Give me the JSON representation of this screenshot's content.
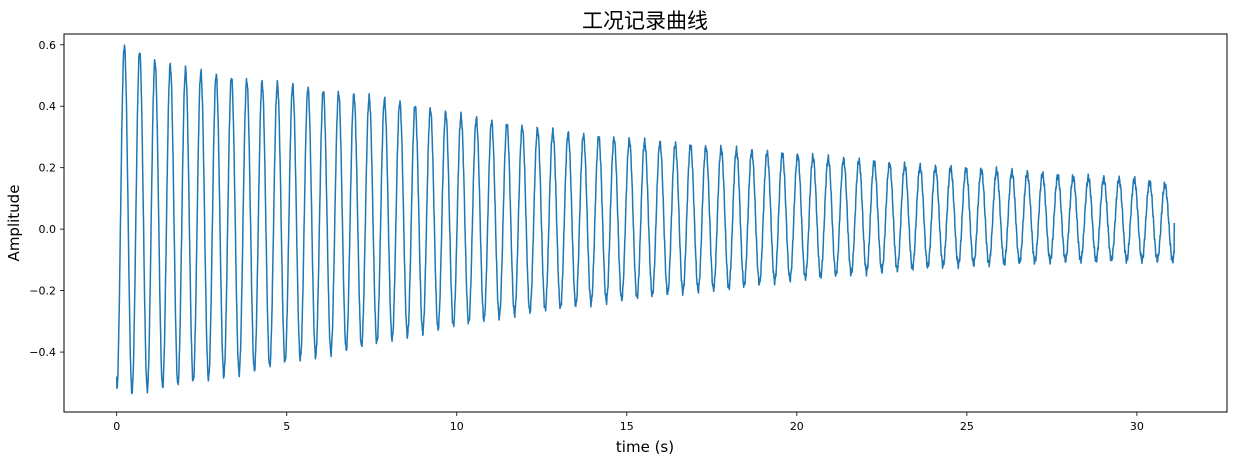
{
  "chart_data": {
    "type": "line",
    "title": "工况记录曲线",
    "xlabel": "time (s)",
    "ylabel": "Amplitude",
    "xlim": [
      -1.55,
      32.65
    ],
    "ylim": [
      -0.595,
      0.635
    ],
    "xticks": [
      0,
      5,
      10,
      15,
      20,
      25,
      30
    ],
    "xtick_labels": [
      "0",
      "5",
      "10",
      "15",
      "20",
      "25",
      "30"
    ],
    "yticks": [
      -0.4,
      -0.2,
      0.0,
      0.2,
      0.4,
      0.6
    ],
    "ytick_labels": [
      "−0.4",
      "−0.2",
      "0.0",
      "0.2",
      "0.4",
      "0.6"
    ],
    "grid": false,
    "line_color": "#1f77b4",
    "series": [
      {
        "x": [
          0.0,
          0.5,
          1.0,
          2.0,
          3.0,
          4.0,
          5.0,
          6.0,
          8.0,
          10.0,
          12.0,
          14.0,
          16.0,
          18.0,
          20.0,
          22.0,
          24.0,
          26.0,
          28.0,
          30.0,
          31.1
        ],
        "upper_envelope": [
          0.6,
          0.59,
          0.55,
          0.52,
          0.5,
          0.48,
          0.47,
          0.45,
          0.42,
          0.37,
          0.33,
          0.3,
          0.28,
          0.26,
          0.24,
          0.22,
          0.2,
          0.19,
          0.17,
          0.16,
          0.14
        ],
        "lower_envelope": [
          -0.53,
          -0.53,
          -0.52,
          -0.5,
          -0.48,
          -0.46,
          -0.43,
          -0.41,
          -0.36,
          -0.31,
          -0.27,
          -0.24,
          -0.21,
          -0.19,
          -0.16,
          -0.14,
          -0.12,
          -0.11,
          -0.1,
          -0.1,
          -0.1
        ],
        "oscillation_period_s": 0.45,
        "start": [
          0.0,
          -0.48
        ],
        "end": [
          31.1,
          0.02
        ]
      }
    ]
  }
}
